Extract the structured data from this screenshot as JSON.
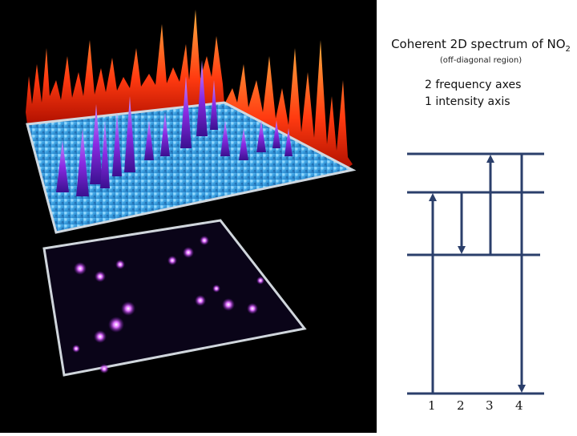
{
  "title": {
    "main": "Coherent 2D spectrum of NO",
    "subscript": "2",
    "subtitle": "(off-diagonal region)"
  },
  "axes_text": {
    "line1": "2 frequency axes",
    "line2": "1 intensity axis"
  },
  "transition_labels": [
    "1",
    "2",
    "3",
    "4"
  ],
  "colors": {
    "background": "#000000",
    "surface": "#3a9fe0",
    "peaks": "#8a2be2",
    "projections": "#ff3a10",
    "map_spots": "#cc44ff",
    "level_lines": "#2b3f6b"
  }
}
